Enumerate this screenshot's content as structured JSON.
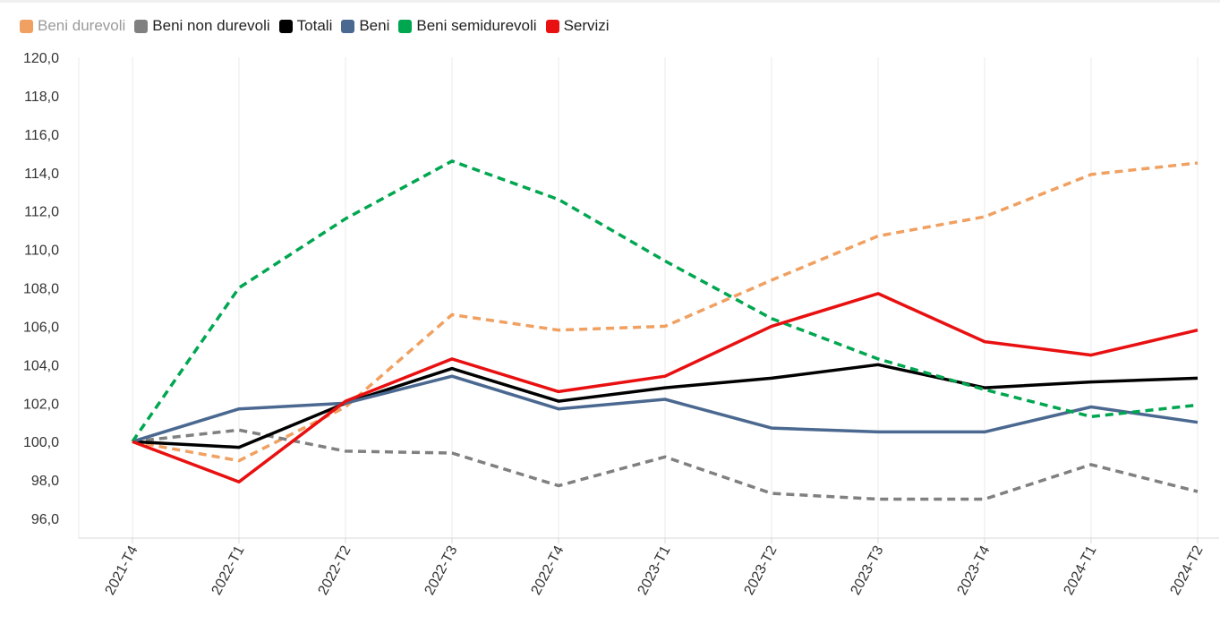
{
  "chart_data": {
    "type": "line",
    "categories": [
      "2021-T4",
      "2022-T1",
      "2022-T2",
      "2022-T3",
      "2022-T4",
      "2023-T1",
      "2023-T2",
      "2023-T3",
      "2023-T4",
      "2024-T1",
      "2024-T2"
    ],
    "y_ticks": [
      "96,0",
      "98,0",
      "100,0",
      "102,0",
      "104,0",
      "106,0",
      "108,0",
      "110,0",
      "112,0",
      "114,0",
      "116,0",
      "118,0",
      "120,0"
    ],
    "ylim": [
      95,
      120
    ],
    "grid": "vertical",
    "legend_position": "top-left",
    "series": [
      {
        "name": "Beni durevoli",
        "color": "#F0A060",
        "style": "dashed",
        "dimmed": true,
        "values": [
          100.0,
          99.0,
          101.8,
          106.6,
          105.8,
          106.0,
          108.4,
          110.7,
          111.7,
          113.9,
          114.5
        ]
      },
      {
        "name": "Beni non durevoli",
        "color": "#808080",
        "style": "dashed",
        "dimmed": false,
        "values": [
          100.0,
          100.6,
          99.5,
          99.4,
          97.7,
          99.2,
          97.3,
          97.0,
          97.0,
          98.8,
          97.4
        ]
      },
      {
        "name": "Totali",
        "color": "#000000",
        "style": "solid",
        "dimmed": false,
        "values": [
          100.0,
          99.7,
          102.0,
          103.8,
          102.1,
          102.8,
          103.3,
          104.0,
          102.8,
          103.1,
          103.3
        ]
      },
      {
        "name": "Beni",
        "color": "#4A6890",
        "style": "solid",
        "dimmed": false,
        "values": [
          100.0,
          101.7,
          102.0,
          103.4,
          101.7,
          102.2,
          100.7,
          100.5,
          100.5,
          101.8,
          101.0
        ]
      },
      {
        "name": "Beni semidurevoli",
        "color": "#00A650",
        "style": "dashed",
        "dimmed": false,
        "values": [
          100.0,
          108.0,
          111.6,
          114.6,
          112.6,
          109.4,
          106.4,
          104.3,
          102.7,
          101.3,
          101.9
        ]
      },
      {
        "name": "Servizi",
        "color": "#E81010",
        "style": "solid",
        "dimmed": false,
        "values": [
          100.0,
          97.9,
          102.1,
          104.3,
          102.6,
          103.4,
          106.0,
          107.7,
          105.2,
          104.5,
          105.8
        ]
      }
    ]
  }
}
